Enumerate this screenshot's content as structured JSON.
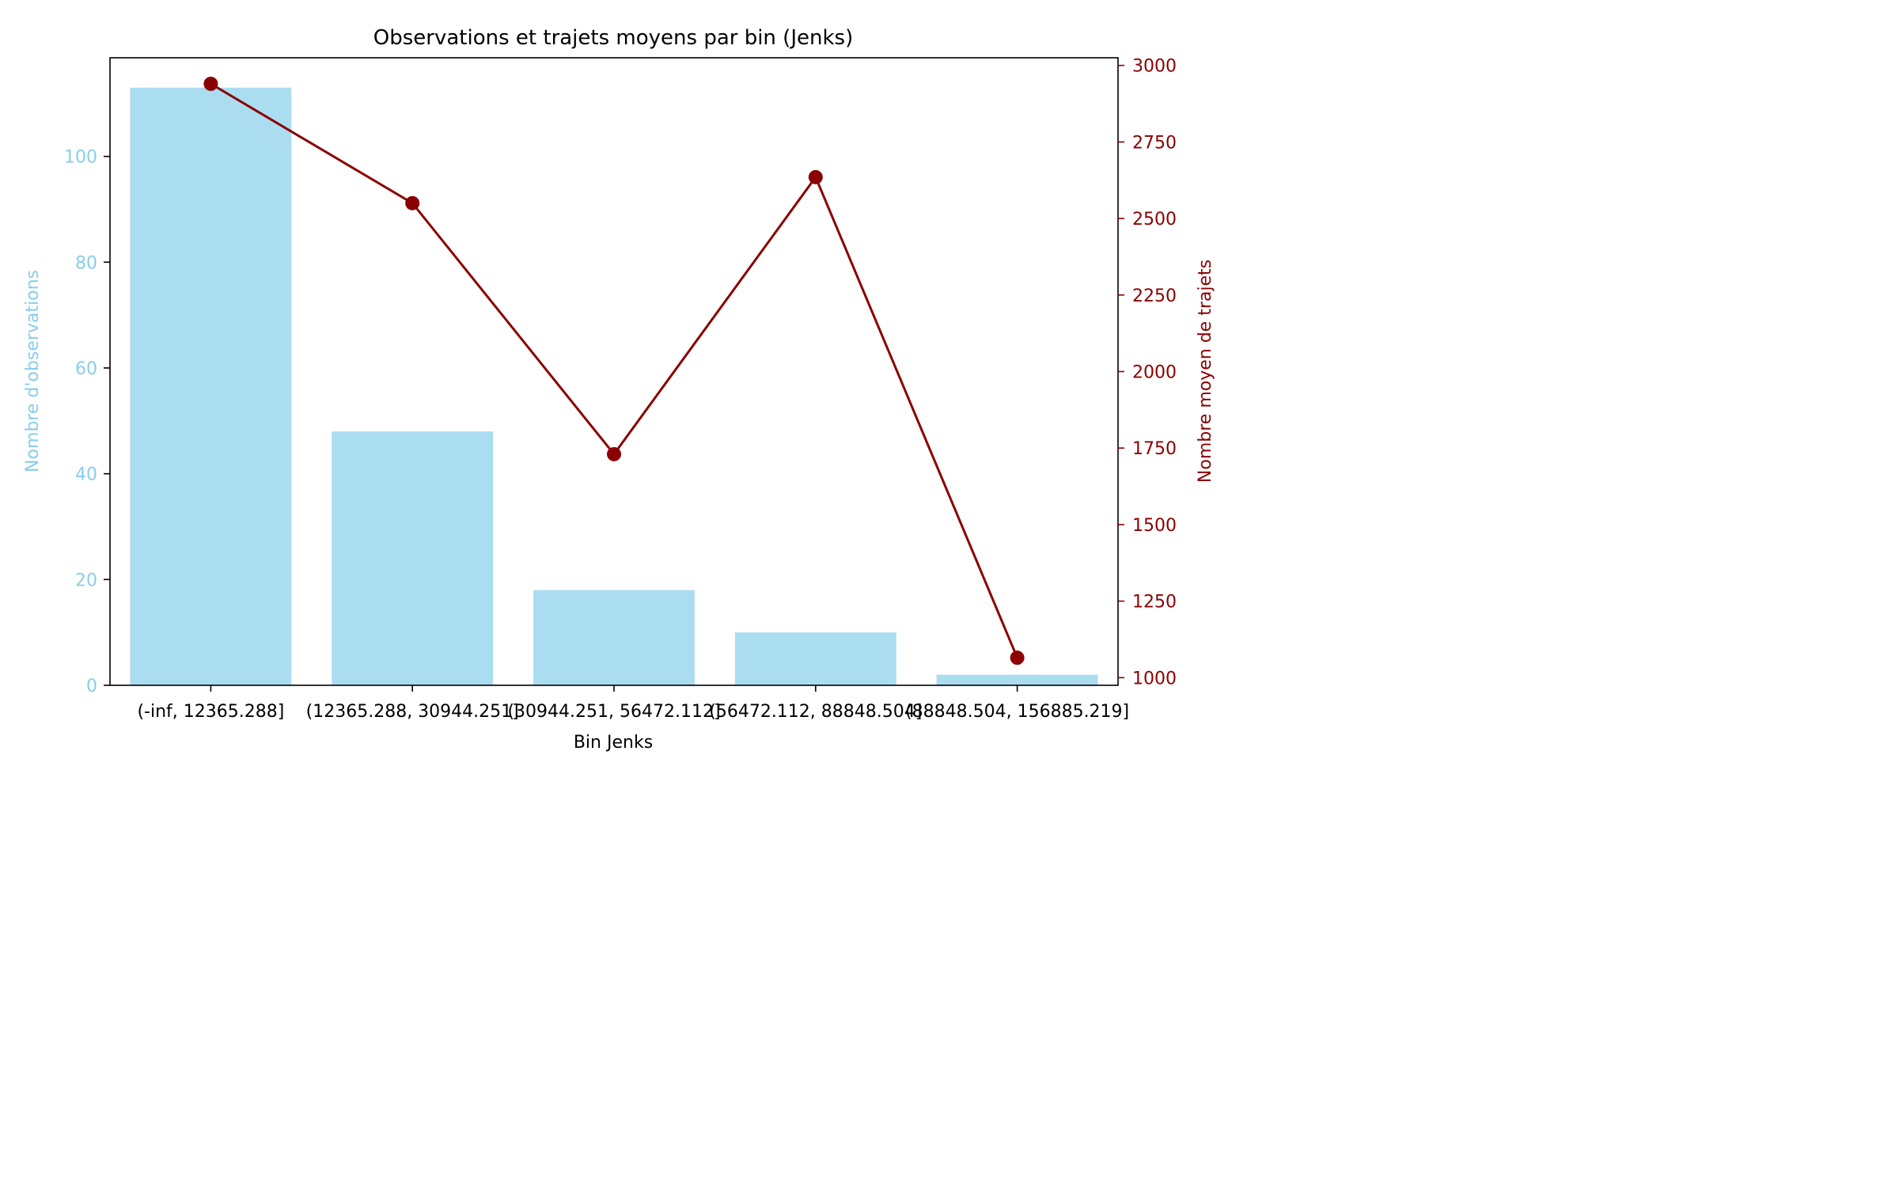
{
  "chart_data": {
    "type": "bar",
    "title": "Observations et trajets moyens par bin (Jenks)",
    "xlabel": "Bin Jenks",
    "ylabel": "Nombre d'observations",
    "y2label": "Nombre moyen de trajets",
    "categories": [
      "(-inf, 12365.288]",
      "(12365.288, 30944.251]",
      "(30944.251, 56472.112]",
      "(56472.112, 88848.504]",
      "(88848.504, 156885.219]"
    ],
    "series": [
      {
        "type": "bar",
        "axis": "left",
        "color": "#87CEEB",
        "values": [
          113,
          48,
          18,
          10,
          2
        ]
      },
      {
        "type": "line",
        "axis": "right",
        "color": "#8B0000",
        "values": [
          2940,
          2550,
          1730,
          2635,
          1065
        ]
      }
    ],
    "ylim": [
      0,
      118.65
    ],
    "y2lim": [
      975,
      3025
    ],
    "yticks": [
      0,
      20,
      40,
      60,
      80,
      100
    ],
    "y2ticks": [
      1000,
      1250,
      1500,
      1750,
      2000,
      2250,
      2500,
      2750,
      3000
    ],
    "ytick_color": "#87CEEB",
    "y2tick_color": "#8B0000",
    "grid": false,
    "legend": "none"
  }
}
